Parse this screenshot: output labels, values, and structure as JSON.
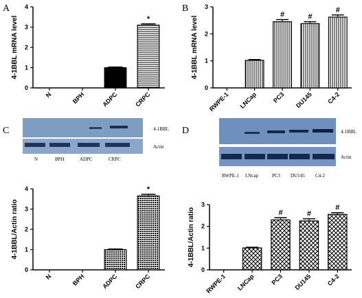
{
  "panels": {
    "A": {
      "letter": "A"
    },
    "B": {
      "letter": "B"
    },
    "C": {
      "letter": "C",
      "blot_band_labels": [
        "4-1BBL",
        "Actin"
      ],
      "blot_lane_labels": [
        "N",
        "BPH",
        "ADPC",
        "CRPC"
      ]
    },
    "D": {
      "letter": "D",
      "blot_band_labels": [
        "4-1BBL",
        "Actin"
      ],
      "blot_lane_labels": [
        "RWPE-1",
        "LNcap",
        "PC3",
        "DU145",
        "C4-2"
      ]
    }
  },
  "chart_data": [
    {
      "panel": "A",
      "type": "bar",
      "categories": [
        "N",
        "BPH",
        "ADPC",
        "CRPC"
      ],
      "values": [
        0,
        0,
        1.0,
        3.1
      ],
      "errors": [
        0,
        0,
        0.03,
        0.06
      ],
      "annotations": [
        "",
        "",
        "",
        "*"
      ],
      "ylabel": "4-1BBL mRNA level",
      "ylim": [
        0,
        4
      ],
      "yticks": [
        0,
        1,
        2,
        3,
        4
      ],
      "fills": [
        "none",
        "none",
        "solid",
        "hlines"
      ]
    },
    {
      "panel": "B",
      "type": "bar",
      "categories": [
        "RWPE-1",
        "LNCap",
        "PC3",
        "DU145",
        "C4-2"
      ],
      "values": [
        0,
        1.02,
        2.45,
        2.38,
        2.62
      ],
      "errors": [
        0,
        0.03,
        0.08,
        0.07,
        0.08
      ],
      "annotations": [
        "",
        "",
        "#",
        "#",
        "#"
      ],
      "ylabel": "4-1BBL mRNA level",
      "ylim": [
        0,
        3
      ],
      "yticks": [
        0,
        1,
        2,
        3
      ],
      "fills": [
        "none",
        "vlines",
        "vlines",
        "vlines",
        "vlines"
      ]
    },
    {
      "panel": "C",
      "type": "bar",
      "categories": [
        "N",
        "BPH",
        "ADPC",
        "CRPC"
      ],
      "values": [
        0,
        0,
        1.0,
        3.65
      ],
      "errors": [
        0,
        0,
        0.03,
        0.08
      ],
      "annotations": [
        "",
        "",
        "",
        "*"
      ],
      "ylabel": "4-1BBL/Actin ratio",
      "ylim": [
        0,
        4
      ],
      "yticks": [
        0,
        1,
        2,
        3,
        4
      ],
      "fills": [
        "none",
        "none",
        "dots",
        "dots"
      ]
    },
    {
      "panel": "D",
      "type": "bar",
      "categories": [
        "RWPE-1",
        "LNCap",
        "PC3",
        "DU145",
        "C4-2"
      ],
      "values": [
        0,
        1.01,
        2.3,
        2.25,
        2.55
      ],
      "errors": [
        0,
        0.03,
        0.1,
        0.1,
        0.08
      ],
      "annotations": [
        "",
        "",
        "#",
        "#",
        "#"
      ],
      "ylabel": "4-1BBL/Actin ratio",
      "ylim": [
        0,
        3
      ],
      "yticks": [
        0,
        1,
        2,
        3
      ],
      "fills": [
        "none",
        "cross",
        "cross",
        "cross",
        "cross"
      ]
    }
  ]
}
